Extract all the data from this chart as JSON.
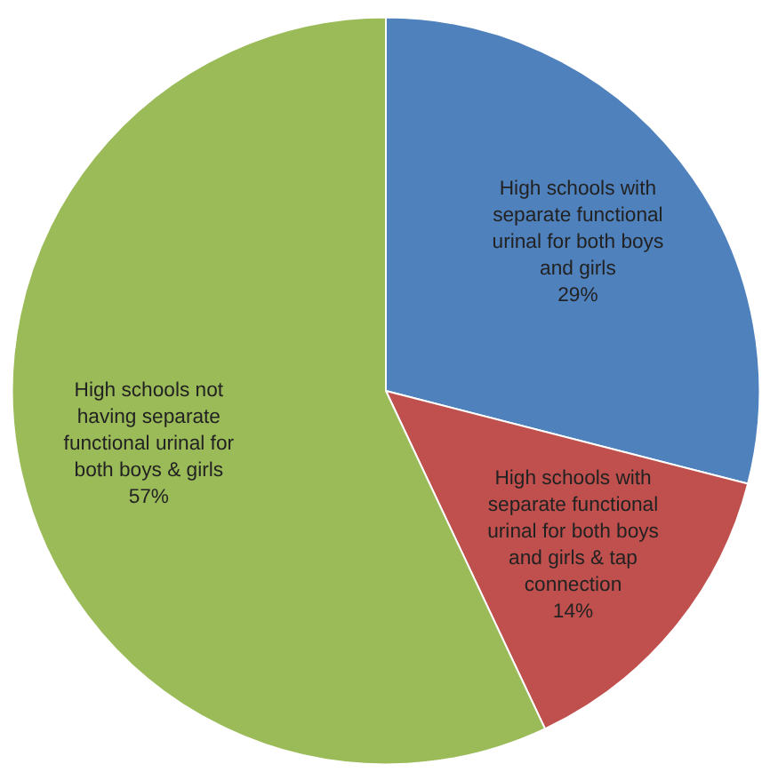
{
  "chart_data": {
    "type": "pie",
    "categories": [
      "High schools with separate functional urinal for both boys and girls",
      "High schools with separate functional urinal for both boys and girls & tap connection",
      "High schools not having separate functional urinal for both boys & girls"
    ],
    "values": [
      29,
      14,
      57
    ],
    "colors": [
      "#4f81bd",
      "#c0504d",
      "#9bbb59"
    ],
    "value_labels": [
      "29%",
      "14%",
      "57%"
    ]
  }
}
